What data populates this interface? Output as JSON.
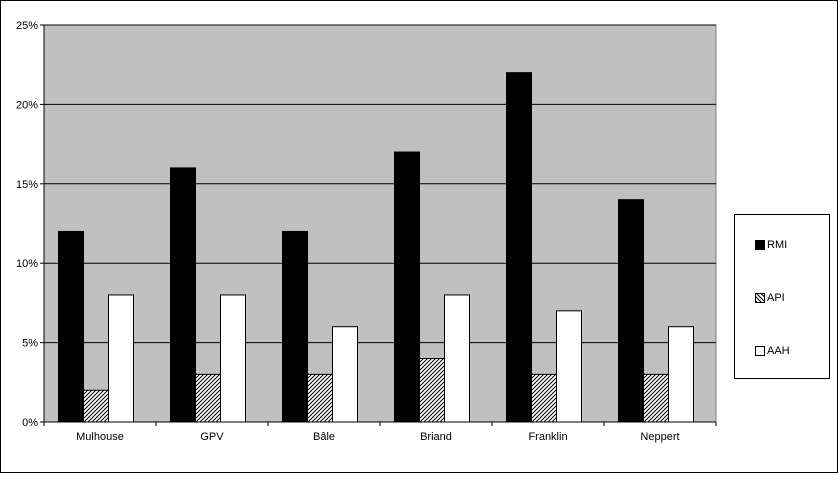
{
  "chart_data": {
    "type": "bar",
    "categories": [
      "Mulhouse",
      "GPV",
      "Bâle",
      "Briand",
      "Franklin",
      "Neppert"
    ],
    "series": [
      {
        "name": "RMI",
        "values": [
          12,
          16,
          12,
          17,
          22,
          14
        ],
        "fill": "#000000"
      },
      {
        "name": "API",
        "values": [
          2,
          3,
          3,
          4,
          3,
          3
        ],
        "fill": "hatch"
      },
      {
        "name": "AAH",
        "values": [
          8,
          8,
          6,
          8,
          7,
          6
        ],
        "fill": "#ffffff"
      }
    ],
    "ylim": [
      0,
      25
    ],
    "yticks": [
      0,
      5,
      10,
      15,
      20,
      25
    ],
    "ytick_labels": [
      "0%",
      "5%",
      "10%",
      "15%",
      "20%",
      "25%"
    ],
    "grid": true,
    "plot_background": "#c0c0c0",
    "legend_position": "right",
    "title": "",
    "xlabel": "",
    "ylabel": ""
  }
}
